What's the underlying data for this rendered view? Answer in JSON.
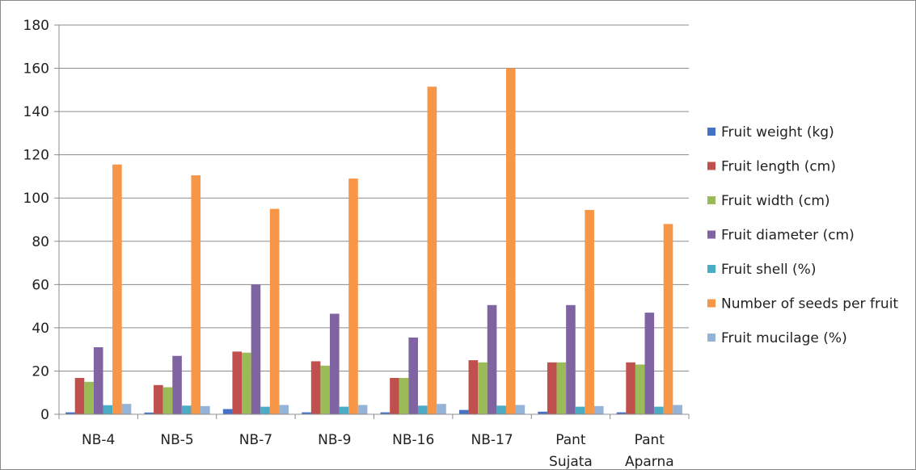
{
  "chart_data": {
    "type": "bar",
    "categories": [
      [
        "NB-4"
      ],
      [
        "NB-5"
      ],
      [
        "NB-7"
      ],
      [
        "NB-9"
      ],
      [
        "NB-16"
      ],
      [
        "NB-17"
      ],
      [
        "Pant",
        "Sujata"
      ],
      [
        "Pant",
        "Aparna"
      ]
    ],
    "series": [
      {
        "name": "Fruit weight (kg)",
        "color": "#4472C4",
        "values": [
          0.9,
          0.8,
          2.4,
          0.9,
          0.9,
          2.0,
          1.2,
          0.9
        ]
      },
      {
        "name": "Fruit length (cm)",
        "color": "#C0504D",
        "values": [
          16.8,
          13.5,
          29.0,
          24.5,
          16.8,
          25.0,
          24.0,
          24.0
        ]
      },
      {
        "name": "Fruit width (cm)",
        "color": "#9BBB59",
        "values": [
          15.0,
          12.5,
          28.5,
          22.5,
          16.8,
          24.0,
          24.0,
          23.0
        ]
      },
      {
        "name": "Fruit diameter (cm)",
        "color": "#8064A2",
        "values": [
          31.0,
          27.0,
          60.0,
          46.5,
          35.5,
          50.5,
          50.5,
          47.0
        ]
      },
      {
        "name": "Fruit shell (%)",
        "color": "#4BACC6",
        "values": [
          4.2,
          4.0,
          3.5,
          3.5,
          4.0,
          4.0,
          3.5,
          3.5
        ]
      },
      {
        "name": "Number of seeds per fruit",
        "color": "#F79646",
        "values": [
          115.5,
          110.5,
          95.0,
          109.0,
          151.5,
          160.0,
          94.5,
          88.0
        ]
      },
      {
        "name": "Fruit mucilage (%)",
        "color": "#95B3D7",
        "values": [
          4.8,
          3.8,
          4.3,
          4.3,
          4.8,
          4.3,
          3.8,
          4.3
        ]
      }
    ],
    "ylim": [
      0,
      180
    ],
    "yticks": [
      "0",
      "20",
      "40",
      "60",
      "80",
      "100",
      "120",
      "140",
      "160",
      "180"
    ],
    "grid": true,
    "legend_position": "right"
  }
}
